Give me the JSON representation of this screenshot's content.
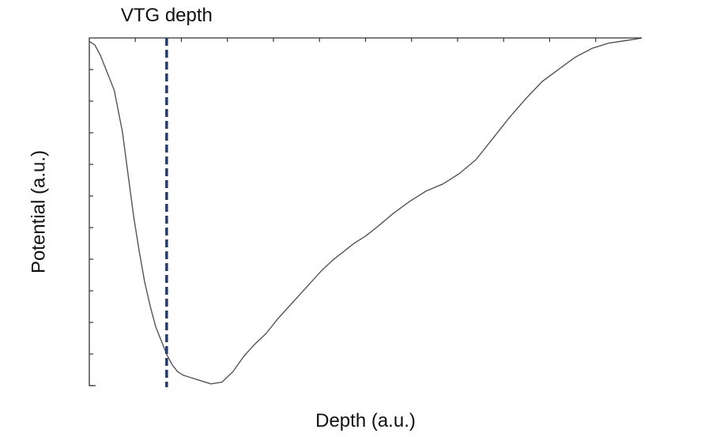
{
  "chart_data": {
    "type": "line",
    "title": "",
    "xlabel": "Depth (a.u.)",
    "ylabel": "Potential (a.u.)",
    "xlim": [
      0,
      100
    ],
    "ylim": [
      0,
      100
    ],
    "grid": false,
    "x_tick_count": 13,
    "y_tick_count": 12,
    "series": [
      {
        "color": "#555555",
        "x": [
          0,
          1,
          2,
          3,
          4.5,
          6,
          7,
          8,
          9,
          10,
          11,
          12,
          13,
          14,
          15,
          16,
          17,
          18,
          20,
          22,
          24,
          26,
          28,
          30,
          32,
          34,
          36,
          38,
          40,
          42,
          44,
          46,
          48,
          50,
          52,
          55,
          58,
          61,
          64,
          67,
          70,
          73,
          76,
          79,
          82,
          85,
          88,
          91,
          94,
          97,
          99,
          100
        ],
        "y": [
          99,
          98,
          95,
          91,
          85,
          73,
          61,
          49,
          39,
          30,
          23,
          17,
          13,
          9,
          6,
          4,
          3,
          2.5,
          1.5,
          0.5,
          1,
          4,
          8.5,
          12,
          15,
          19,
          22.5,
          26,
          29.5,
          33,
          36,
          38.5,
          41,
          43,
          45.5,
          49.5,
          53,
          56,
          58,
          61,
          65,
          71,
          77,
          82.5,
          87.5,
          91,
          94.5,
          97,
          98.5,
          99.2,
          99.7,
          100
        ]
      }
    ],
    "vertical_line": {
      "x": 14,
      "label": "VTG depth",
      "color": "#1f3d7a"
    }
  }
}
